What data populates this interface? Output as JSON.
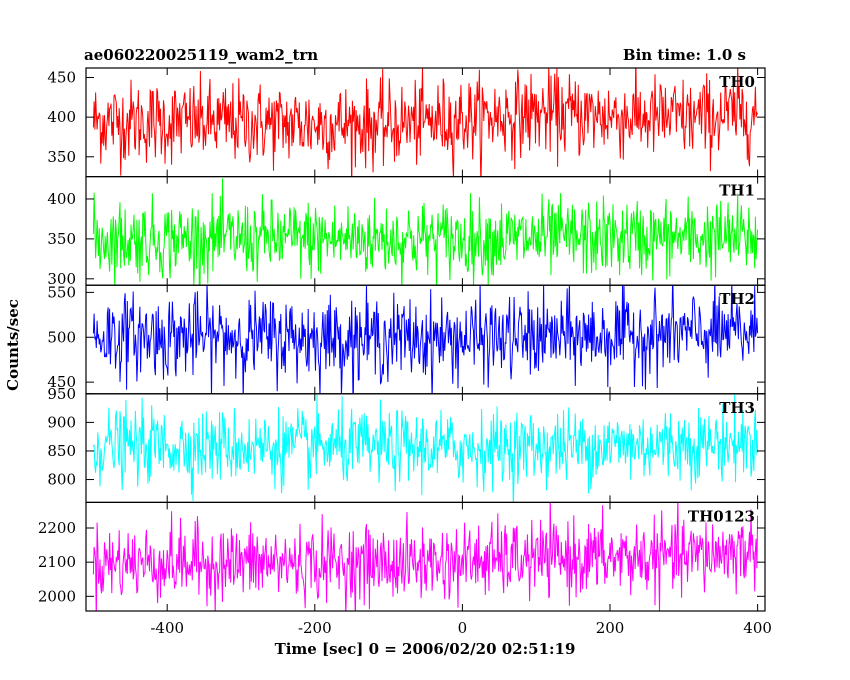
{
  "chart_data": {
    "type": "line",
    "title_left": "ae060220025119_wam2_trn",
    "title_right": "Bin time: 1.0 s",
    "xlabel": "Time [sec] 0 = 2006/02/20 02:51:19",
    "ylabel": "Counts/sec",
    "xlim": [
      -510,
      410
    ],
    "xticks": [
      -400,
      -200,
      0,
      200,
      400
    ],
    "grid": false,
    "panels": [
      {
        "name": "TH0",
        "color": "#ff0000",
        "ylim": [
          325,
          462
        ],
        "yticks": [
          350,
          400,
          450
        ],
        "mean": 400,
        "noise": 26,
        "trend": [
          [
            -500,
            395
          ],
          [
            -100,
            390
          ],
          [
            100,
            405
          ],
          [
            300,
            398
          ],
          [
            400,
            405
          ]
        ]
      },
      {
        "name": "TH1",
        "color": "#00ff00",
        "ylim": [
          292,
          428
        ],
        "yticks": [
          300,
          350,
          400
        ],
        "mean": 350,
        "noise": 24,
        "trend": [
          [
            -500,
            350
          ],
          [
            0,
            350
          ],
          [
            400,
            352
          ]
        ]
      },
      {
        "name": "TH2",
        "color": "#0000ff",
        "ylim": [
          437,
          558
        ],
        "yticks": [
          450,
          500,
          550
        ],
        "mean": 500,
        "noise": 23,
        "trend": [
          [
            -500,
            502
          ],
          [
            0,
            498
          ],
          [
            400,
            505
          ]
        ]
      },
      {
        "name": "TH3",
        "color": "#00ffff",
        "ylim": [
          760,
          950
        ],
        "yticks": [
          800,
          850,
          900,
          950
        ],
        "mean": 860,
        "noise": 32,
        "trend": [
          [
            -500,
            860
          ],
          [
            0,
            855
          ],
          [
            400,
            865
          ]
        ]
      },
      {
        "name": "TH0123",
        "color": "#ff00ff",
        "ylim": [
          1957,
          2275
        ],
        "yticks": [
          2000,
          2100,
          2200
        ],
        "mean": 2105,
        "noise": 55,
        "trend": [
          [
            -500,
            2100
          ],
          [
            -100,
            2095
          ],
          [
            100,
            2110
          ],
          [
            300,
            2115
          ],
          [
            400,
            2140
          ]
        ]
      }
    ]
  }
}
